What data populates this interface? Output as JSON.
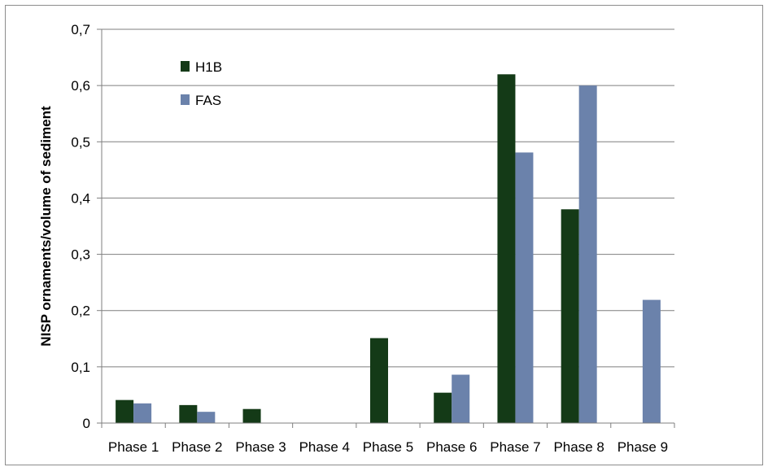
{
  "chart_data": {
    "type": "bar",
    "categories": [
      "Phase 1",
      "Phase 2",
      "Phase 3",
      "Phase 4",
      "Phase 5",
      "Phase 6",
      "Phase 7",
      "Phase 8",
      "Phase 9"
    ],
    "series": [
      {
        "name": "H1B",
        "color": "#143a17",
        "values": [
          0.041,
          0.032,
          0.025,
          0,
          0.151,
          0.054,
          0.62,
          0.38,
          0
        ]
      },
      {
        "name": "FAS",
        "color": "#6b82ab",
        "values": [
          0.035,
          0.02,
          0,
          0,
          0,
          0.086,
          0.481,
          0.6,
          0.219
        ]
      }
    ],
    "ylabel": "NISP ornaments/volume of sediment",
    "xlabel": "",
    "ylim": [
      0,
      0.7
    ],
    "yticks": [
      "0",
      "0,1",
      "0,2",
      "0,3",
      "0,4",
      "0,5",
      "0,6",
      "0,7"
    ],
    "grid": true,
    "legend": "top-left"
  }
}
